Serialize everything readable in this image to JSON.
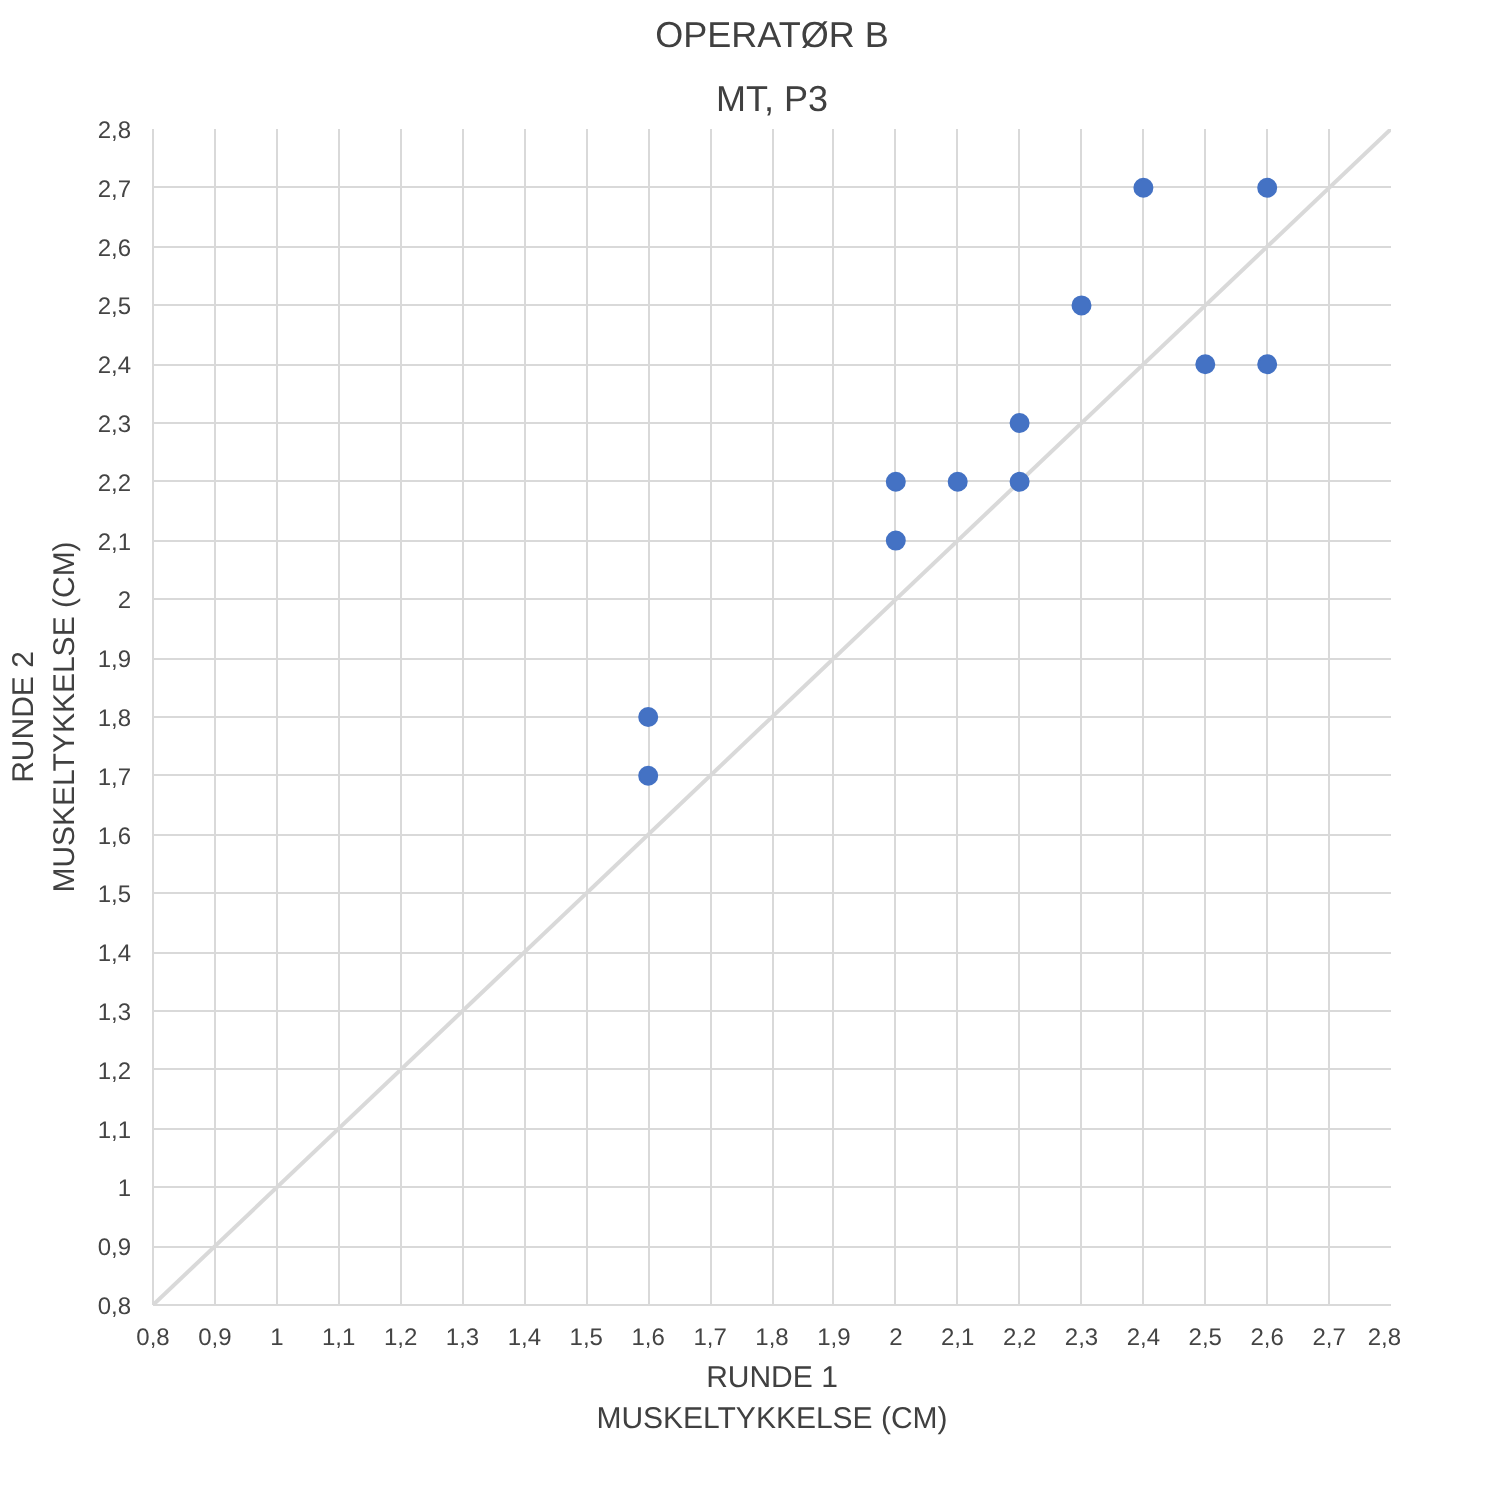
{
  "chart_data": {
    "type": "scatter",
    "title": "OPERATØR B",
    "subtitle": "MT, P3",
    "xlabel": "RUNDE 1\nMUSKELTYKKELSE (CM)",
    "ylabel": "RUNDE 2\nMUSKELTYKKELSE (CM)",
    "xlim": [
      0.8,
      2.8
    ],
    "ylim": [
      0.8,
      2.8
    ],
    "xticks": [
      {
        "value": 0.8,
        "label": "0,8"
      },
      {
        "value": 0.9,
        "label": "0,9"
      },
      1,
      {
        "value": 1.1,
        "label": "1,1"
      },
      {
        "value": 1.2,
        "label": "1,2"
      },
      {
        "value": 1.3,
        "label": "1,3"
      },
      {
        "value": 1.4,
        "label": "1,4"
      },
      {
        "value": 1.5,
        "label": "1,5"
      },
      {
        "value": 1.6,
        "label": "1,6"
      },
      {
        "value": 1.7,
        "label": "1,7"
      },
      {
        "value": 1.8,
        "label": "1,8"
      },
      {
        "value": 1.9,
        "label": "1,9"
      },
      2,
      {
        "value": 2.1,
        "label": "2,1"
      },
      {
        "value": 2.2,
        "label": "2,2"
      },
      {
        "value": 2.3,
        "label": "2,3"
      },
      {
        "value": 2.4,
        "label": "2,4"
      },
      {
        "value": 2.5,
        "label": "2,5"
      },
      {
        "value": 2.6,
        "label": "2,6"
      },
      {
        "value": 2.7,
        "label": "2,7"
      },
      {
        "value": 2.8,
        "label": "2,8"
      }
    ],
    "yticks": [
      {
        "value": 0.8,
        "label": "0,8"
      },
      {
        "value": 0.9,
        "label": "0,9"
      },
      1,
      {
        "value": 1.1,
        "label": "1,1"
      },
      {
        "value": 1.2,
        "label": "1,2"
      },
      {
        "value": 1.3,
        "label": "1,3"
      },
      {
        "value": 1.4,
        "label": "1,4"
      },
      {
        "value": 1.5,
        "label": "1,5"
      },
      {
        "value": 1.6,
        "label": "1,6"
      },
      {
        "value": 1.7,
        "label": "1,7"
      },
      {
        "value": 1.8,
        "label": "1,8"
      },
      {
        "value": 1.9,
        "label": "1,9"
      },
      2,
      {
        "value": 2.1,
        "label": "2,1"
      },
      {
        "value": 2.2,
        "label": "2,2"
      },
      {
        "value": 2.3,
        "label": "2,3"
      },
      {
        "value": 2.4,
        "label": "2,4"
      },
      {
        "value": 2.5,
        "label": "2,5"
      },
      {
        "value": 2.6,
        "label": "2,6"
      },
      {
        "value": 2.7,
        "label": "2,7"
      },
      {
        "value": 2.8,
        "label": "2,8"
      }
    ],
    "grid": true,
    "marker": "circle",
    "series": [
      {
        "type": "line",
        "marker": "none",
        "color": "#d9d9d9",
        "x": [
          0.8,
          2.8
        ],
        "values": [
          0.8,
          2.8
        ]
      },
      {
        "color": "#4472c4",
        "x": [
          1.6,
          1.6,
          2,
          2,
          2.1,
          2.2,
          2.2,
          2.3,
          2.4,
          2.6,
          2.5,
          2.6
        ],
        "values": [
          1.8,
          1.7,
          2.2,
          2.1,
          2.2,
          2.3,
          2.2,
          2.5,
          2.7,
          2.7,
          2.4,
          2.4
        ]
      }
    ]
  }
}
